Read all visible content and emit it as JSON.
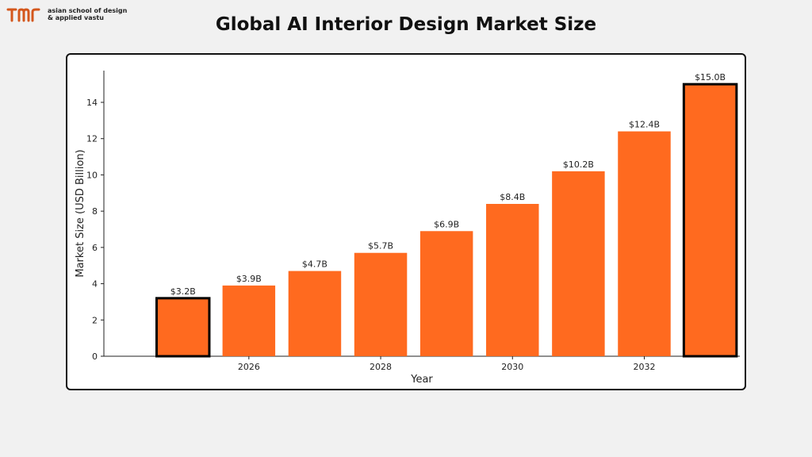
{
  "brand": {
    "line1": "asian school of design",
    "line2": "& applied vastu",
    "icon": "tmr-logo-icon",
    "colors": {
      "mark": "#d4571c",
      "text": "#222222"
    }
  },
  "page_title": "Global AI Interior Design Market Size",
  "colors": {
    "bar": "#ff6a1f",
    "highlight_border": "#000000",
    "background": "#f1f1f1"
  },
  "chart_data": {
    "type": "bar",
    "x": [
      2025,
      2026,
      2027,
      2028,
      2029,
      2030,
      2031,
      2032,
      2033
    ],
    "values": [
      3.2,
      3.9,
      4.7,
      5.7,
      6.9,
      8.4,
      10.2,
      12.4,
      15.0
    ],
    "data_labels": [
      "$3.2B",
      "$3.9B",
      "$4.7B",
      "$5.7B",
      "$6.9B",
      "$8.4B",
      "$10.2B",
      "$12.4B",
      "$15.0B"
    ],
    "highlighted": [
      2025,
      2033
    ],
    "xticks": [
      2026,
      2028,
      2030,
      2032
    ],
    "yticks": [
      0,
      2,
      4,
      6,
      8,
      10,
      12,
      14
    ],
    "xlabel": "Year",
    "ylabel": "Market Size (USD Billion)",
    "ylim": [
      0,
      15.75
    ],
    "xlim": [
      2023.8,
      2033.45
    ],
    "grid": false,
    "legend": "none"
  }
}
